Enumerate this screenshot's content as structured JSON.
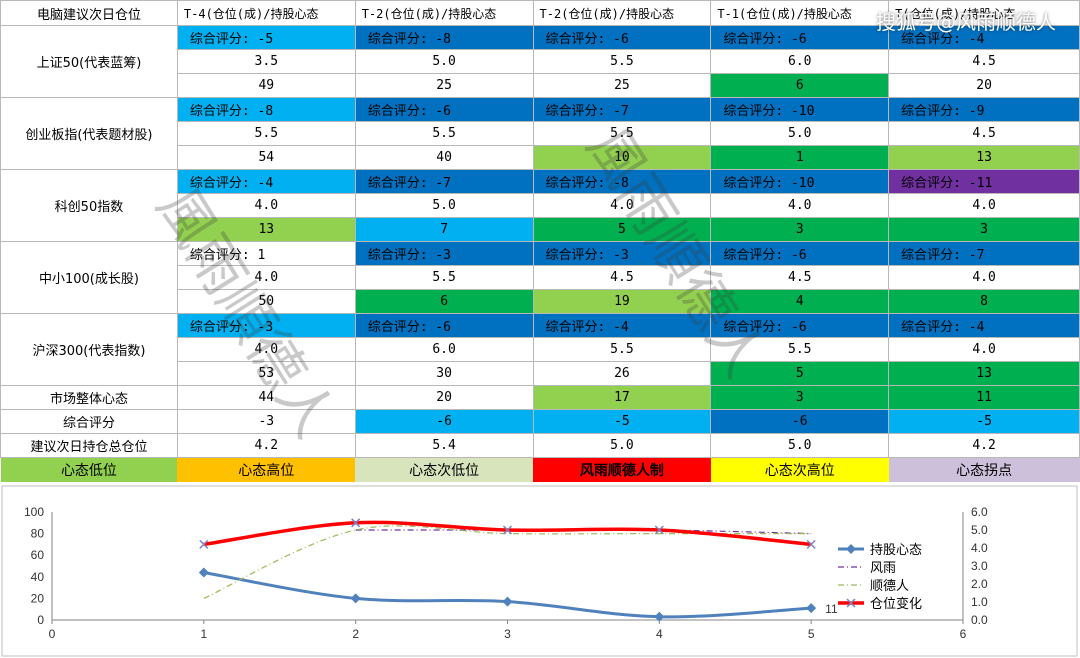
{
  "brand": "搜狐号@风雨顺德人",
  "watermark": "風雨順德人",
  "corner": "电脑建议次日仓位",
  "headers": [
    "T-4(仓位(成)/持股心态",
    "T-2(仓位(成)/持股心态",
    "T-2(仓位(成)/持股心态",
    "T-1(仓位(成)/持股心态",
    "T(仓位(成)/持股心态"
  ],
  "indices": [
    {
      "label": "上证50(代表蓝筹)",
      "scores": [
        "综合评分: -5",
        "综合评分: -8",
        "综合评分: -6",
        "综合评分: -6",
        "综合评分: -4"
      ],
      "positions": [
        "3.5",
        "5.0",
        "5.5",
        "6.0",
        "4.5"
      ],
      "mood": [
        "49",
        "25",
        "25",
        "6",
        "20"
      ]
    },
    {
      "label": "创业板指(代表题材股)",
      "scores": [
        "综合评分: -8",
        "综合评分: -6",
        "综合评分: -7",
        "综合评分: -10",
        "综合评分: -9"
      ],
      "positions": [
        "5.5",
        "5.5",
        "5.5",
        "5.0",
        "4.5"
      ],
      "mood": [
        "54",
        "40",
        "10",
        "1",
        "13"
      ]
    },
    {
      "label": "科创50指数",
      "scores": [
        "综合评分: -4",
        "综合评分: -7",
        "综合评分: -8",
        "综合评分: -10",
        "综合评分: -11"
      ],
      "positions": [
        "4.0",
        "5.0",
        "4.0",
        "4.0",
        "4.0"
      ],
      "mood": [
        "13",
        "7",
        "5",
        "3",
        "3"
      ]
    },
    {
      "label": "中小100(成长股)",
      "scores": [
        "综合评分: 1",
        "综合评分: -3",
        "综合评分: -3",
        "综合评分: -6",
        "综合评分: -7"
      ],
      "positions": [
        "4.0",
        "5.5",
        "4.5",
        "4.5",
        "4.0"
      ],
      "mood": [
        "50",
        "6",
        "19",
        "4",
        "8"
      ]
    },
    {
      "label": "沪深300(代表指数)",
      "scores": [
        "综合评分: -3",
        "综合评分: -6",
        "综合评分: -4",
        "综合评分: -6",
        "综合评分: -4"
      ],
      "positions": [
        "4.0",
        "6.0",
        "5.5",
        "5.5",
        "4.0"
      ],
      "mood": [
        "53",
        "30",
        "26",
        "5",
        "13"
      ]
    }
  ],
  "summary": [
    {
      "label": "市场整体心态",
      "values": [
        "44",
        "20",
        "17",
        "3",
        "11"
      ]
    },
    {
      "label": "综合评分",
      "values": [
        "-3",
        "-6",
        "-5",
        "-6",
        "-5"
      ]
    },
    {
      "label": "建议次日持仓总仓位",
      "values": [
        "4.2",
        "5.4",
        "5.0",
        "5.0",
        "4.2"
      ]
    }
  ],
  "legend": [
    {
      "label": "心态低位",
      "color": "#92d050",
      "text_color": "#000000"
    },
    {
      "label": "心态高位",
      "color": "#ffc000",
      "text_color": "#000000"
    },
    {
      "label": "心态次低位",
      "color": "#d8e4bc",
      "text_color": "#000000"
    },
    {
      "label": "风雨顺德人制",
      "color": "#ff0000",
      "text_color": "#000000"
    },
    {
      "label": "心态次高位",
      "color": "#ffff00",
      "text_color": "#000000"
    },
    {
      "label": "心态拐点",
      "color": "#ccc0da",
      "text_color": "#000000"
    }
  ],
  "colors": {
    "score_rows": [
      [
        "b1",
        "b2",
        "b2",
        "b2",
        "b2"
      ],
      [
        "b1",
        "b2",
        "b2",
        "b2",
        "b2"
      ],
      [
        "b1",
        "b2",
        "b2",
        "b2",
        "pu"
      ],
      [
        "wh",
        "b2",
        "b2",
        "b2",
        "b2"
      ],
      [
        "b1",
        "b2",
        "b2",
        "b2",
        "b2"
      ]
    ],
    "mood_rows": [
      [
        "wh",
        "wh",
        "wh",
        "g2",
        "wh"
      ],
      [
        "wh",
        "wh",
        "g1",
        "g2",
        "g1"
      ],
      [
        "g1",
        "b1",
        "g2",
        "g2",
        "g2"
      ],
      [
        "wh",
        "g2",
        "g1",
        "g2",
        "g2"
      ],
      [
        "wh",
        "wh",
        "wh",
        "g2",
        "g2"
      ]
    ],
    "summary_rows": [
      [
        "wh",
        "wh",
        "g1",
        "g2",
        "g2"
      ],
      [
        "wh",
        "b1",
        "b1",
        "b2",
        "b1"
      ],
      [
        "wh",
        "wh",
        "wh",
        "wh",
        "wh"
      ]
    ]
  },
  "chart_data": {
    "type": "line",
    "x": [
      1,
      2,
      3,
      4,
      5
    ],
    "xlim": [
      0,
      6
    ],
    "ylim_left": [
      0,
      100
    ],
    "ylim_right": [
      0,
      6
    ],
    "yticks_left": [
      0,
      20,
      40,
      60,
      80,
      100
    ],
    "yticks_right": [
      "0.0",
      "1.0",
      "2.0",
      "3.0",
      "4.0",
      "5.0",
      "6.0"
    ],
    "xticks": [
      0,
      1,
      2,
      3,
      4,
      5,
      6
    ],
    "series": [
      {
        "name": "持股心态",
        "axis": "left",
        "values": [
          44,
          20,
          17,
          3,
          11
        ],
        "color": "#4f81bd",
        "style": "solid-marker"
      },
      {
        "name": "风雨",
        "axis": "right",
        "values": [
          null,
          5.0,
          5.0,
          5.0,
          4.8
        ],
        "color": "#7030a0",
        "style": "dashdot"
      },
      {
        "name": "顺德人",
        "axis": "right",
        "values": [
          1.2,
          5.0,
          4.8,
          4.8,
          4.8
        ],
        "color": "#9bbb59",
        "style": "dashdot"
      },
      {
        "name": "仓位变化",
        "axis": "right",
        "values": [
          4.2,
          5.4,
          5.0,
          5.0,
          4.2
        ],
        "color": "#ff0000",
        "style": "thick-x"
      }
    ],
    "last_label": "11"
  }
}
